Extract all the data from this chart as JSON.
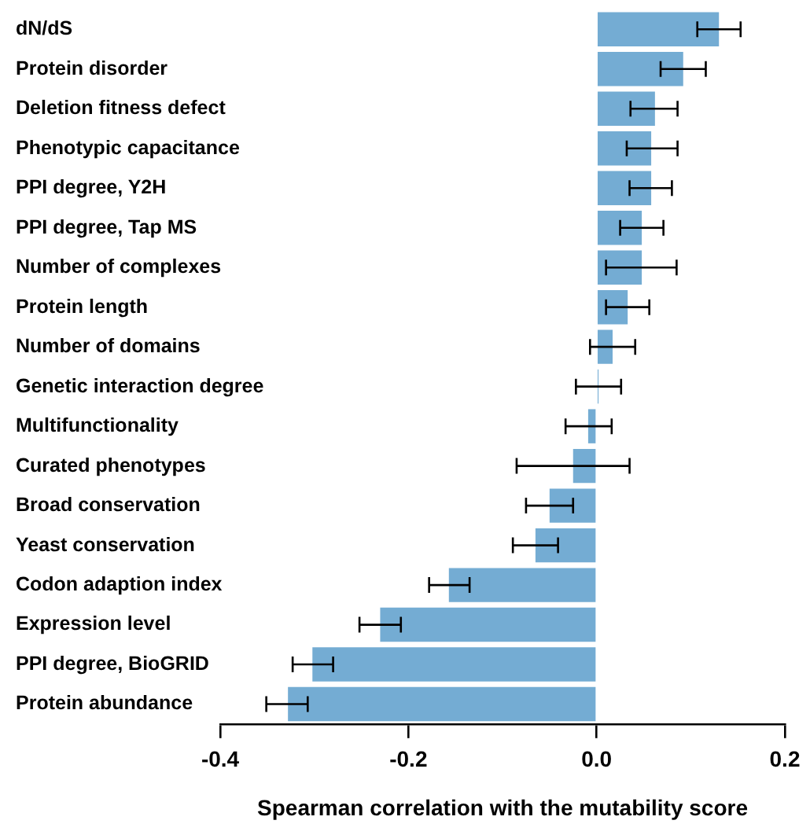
{
  "chart_data": {
    "type": "bar",
    "orientation": "horizontal",
    "xlabel": "Spearman correlation with the mutability score",
    "categories": [
      "dN/dS",
      "Protein disorder",
      "Deletion fitness defect",
      "Phenotypic capacitance",
      "PPI degree, Y2H",
      "PPI degree, Tap MS",
      "Number of complexes",
      "Protein length",
      "Number of domains",
      "Genetic interaction degree",
      "Multifunctionality",
      "Curated phenotypes",
      "Broad conservation",
      "Yeast conservation",
      "Codon adaption index",
      "Expression level",
      "PPI degree, BioGRID",
      "Protein abundance"
    ],
    "values": [
      0.13,
      0.092,
      0.062,
      0.058,
      0.058,
      0.048,
      0.048,
      0.033,
      0.017,
      0.002,
      -0.009,
      -0.025,
      -0.05,
      -0.065,
      -0.157,
      -0.23,
      -0.302,
      -0.328
    ],
    "errors": [
      [
        0.107,
        0.153
      ],
      [
        0.068,
        0.116
      ],
      [
        0.036,
        0.086
      ],
      [
        0.032,
        0.086
      ],
      [
        0.035,
        0.08
      ],
      [
        0.025,
        0.071
      ],
      [
        0.01,
        0.085
      ],
      [
        0.01,
        0.056
      ],
      [
        -0.007,
        0.041
      ],
      [
        -0.022,
        0.026
      ],
      [
        -0.033,
        0.016
      ],
      [
        -0.085,
        0.035
      ],
      [
        -0.075,
        -0.025
      ],
      [
        -0.089,
        -0.041
      ],
      [
        -0.178,
        -0.135
      ],
      [
        -0.252,
        -0.208
      ],
      [
        -0.323,
        -0.28
      ],
      [
        -0.351,
        -0.307
      ]
    ],
    "color": "#74acd3",
    "xlim": [
      -0.4,
      0.2
    ],
    "xticks": [
      {
        "value": -0.4,
        "label": "-0.4"
      },
      {
        "value": -0.2,
        "label": "-0.2"
      },
      {
        "value": 0,
        "label": "0.0"
      },
      {
        "value": 0.2,
        "label": "0.2"
      }
    ],
    "grid": false,
    "legend": false
  }
}
